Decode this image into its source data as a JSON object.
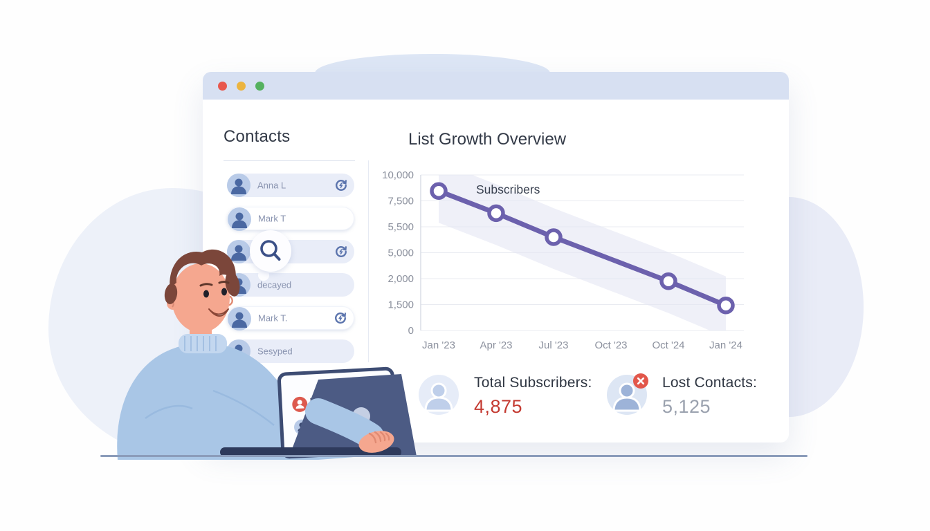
{
  "window": {
    "titlebar": {
      "dot_colors": [
        "#e8574d",
        "#ecb43f",
        "#55b15f"
      ]
    },
    "contacts": {
      "title": "Contacts",
      "items": [
        {
          "name": "Anna L",
          "has_refresh": true,
          "style": "light"
        },
        {
          "name": "Mark T",
          "has_refresh": false,
          "style": "white"
        },
        {
          "name": "",
          "has_refresh": true,
          "style": "light",
          "search_overlay": true
        },
        {
          "name": "decayed",
          "has_refresh": false,
          "style": "light"
        },
        {
          "name": "Mark T.",
          "has_refresh": true,
          "style": "white"
        },
        {
          "name": "Sesyped",
          "has_refresh": false,
          "style": "light"
        }
      ]
    },
    "chart_title": "List Growth Overview",
    "stats": [
      {
        "label": "Total Subscribers:",
        "value": "4,875",
        "color": "#c43a31"
      },
      {
        "label": "Lost Contacts:",
        "value": "5,125",
        "color": "#9aa1ae"
      }
    ]
  },
  "chart_data": {
    "type": "line",
    "title": "List Growth Overview",
    "series": [
      {
        "name": "Subscribers",
        "points": [
          {
            "x": "Jan '23",
            "y": 8450
          },
          {
            "x": "Apr '23",
            "y": 6550
          },
          {
            "x": "Jul '23",
            "y": 5300
          },
          {
            "x": "Oct '24",
            "y": 1950
          },
          {
            "x": "Jan '24",
            "y": 1450
          }
        ]
      }
    ],
    "x_tick_labels": [
      "Jan '23",
      "Apr '23",
      "Jul '23",
      "Oct '23",
      "Oct '24",
      "Jan '24"
    ],
    "y_tick_labels": [
      "10,000",
      "7,500",
      "5,500",
      "5,000",
      "2,000",
      "1,500",
      "0"
    ],
    "in_plot_label": "Subscribers",
    "grid": "horizontal",
    "legend_position": "in-plot top-left",
    "line_color": "#6c61ad",
    "band_color": "#e4e6f4",
    "tick_color": "#8b909d",
    "marker": "open-circle"
  }
}
